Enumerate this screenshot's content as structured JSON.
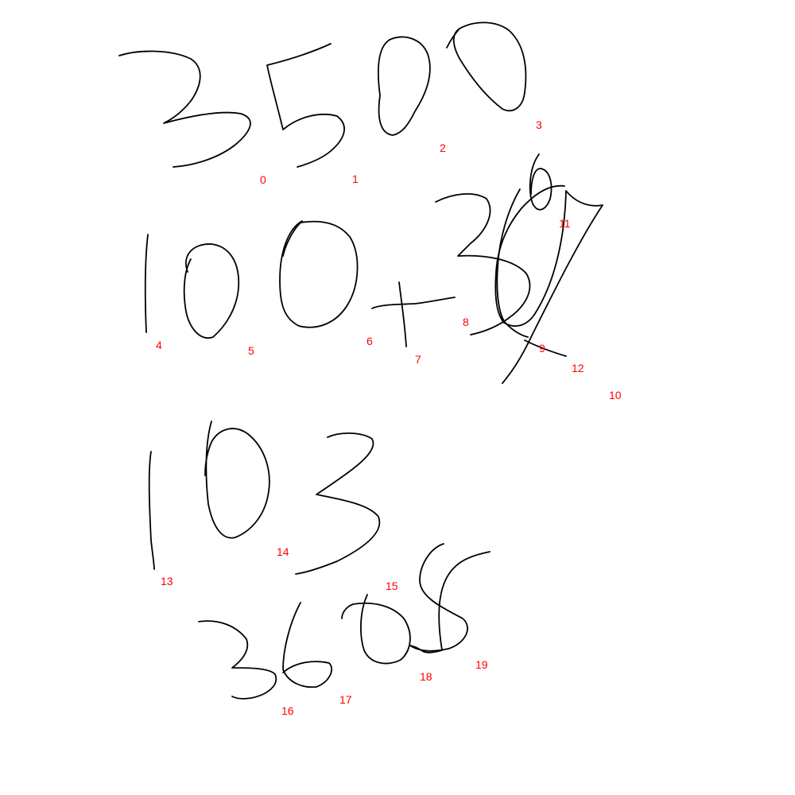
{
  "colors": {
    "ink": "#000000",
    "label": "#ff0000",
    "background": "#ffffff"
  },
  "strokes": [
    {
      "id": "0",
      "label": "0"
    },
    {
      "id": "1",
      "label": "1"
    },
    {
      "id": "2",
      "label": "2"
    },
    {
      "id": "3",
      "label": "3"
    },
    {
      "id": "4",
      "label": "4"
    },
    {
      "id": "5",
      "label": "5"
    },
    {
      "id": "6",
      "label": "6"
    },
    {
      "id": "7",
      "label": "7"
    },
    {
      "id": "8",
      "label": "8"
    },
    {
      "id": "9",
      "label": "9"
    },
    {
      "id": "10",
      "label": "10"
    },
    {
      "id": "11",
      "label": "11"
    },
    {
      "id": "12",
      "label": "12"
    },
    {
      "id": "13",
      "label": "13"
    },
    {
      "id": "14",
      "label": "14"
    },
    {
      "id": "15",
      "label": "15"
    },
    {
      "id": "16",
      "label": "16"
    },
    {
      "id": "17",
      "label": "17"
    },
    {
      "id": "18",
      "label": "18"
    },
    {
      "id": "19",
      "label": "19"
    }
  ]
}
